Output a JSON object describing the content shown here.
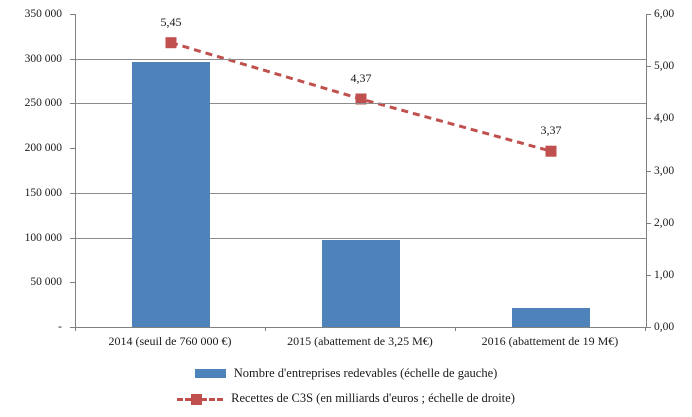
{
  "chart_data": {
    "type": "bar",
    "subtype": "combo-bar-line-dual-axis",
    "title": "",
    "categories": [
      "2014 (seuil de 760 000 €)",
      "2015 (abattement de 3,25 M€)",
      "2016 (abattement de 19 M€)"
    ],
    "series": [
      {
        "name": "Nombre d'entreprises redevables (échelle de gauche)",
        "type": "bar",
        "axis": "left",
        "values": [
          296000,
          97000,
          21000
        ],
        "color": "#4D82BB"
      },
      {
        "name": "Recettes de C3S (en milliards d'euros ; échelle de droite)",
        "type": "line",
        "axis": "right",
        "line_style": "dashed",
        "marker": "square",
        "values": [
          5.45,
          4.37,
          3.37
        ],
        "point_labels": [
          "5,45",
          "4,37",
          "3,37"
        ],
        "color": "#C0504D"
      }
    ],
    "left_axis": {
      "min": 0,
      "max": 350000,
      "ticks": [
        "350 000",
        "300 000",
        "250 000",
        "200 000",
        "150 000",
        "100 000",
        "50 000",
        "-"
      ],
      "tick_values": [
        350000,
        300000,
        250000,
        200000,
        150000,
        100000,
        50000,
        0
      ]
    },
    "right_axis": {
      "min": 0,
      "max": 6,
      "ticks": [
        "6,00",
        "5,00",
        "4,00",
        "3,00",
        "2,00",
        "1,00",
        "0,00"
      ],
      "tick_values": [
        6,
        5,
        4,
        3,
        2,
        1,
        0
      ]
    },
    "gridline_values": [
      300000,
      250000,
      150000,
      100000
    ],
    "grid_color": "#8c8c8c",
    "axis_color": "#808080",
    "legend_position": "bottom"
  }
}
